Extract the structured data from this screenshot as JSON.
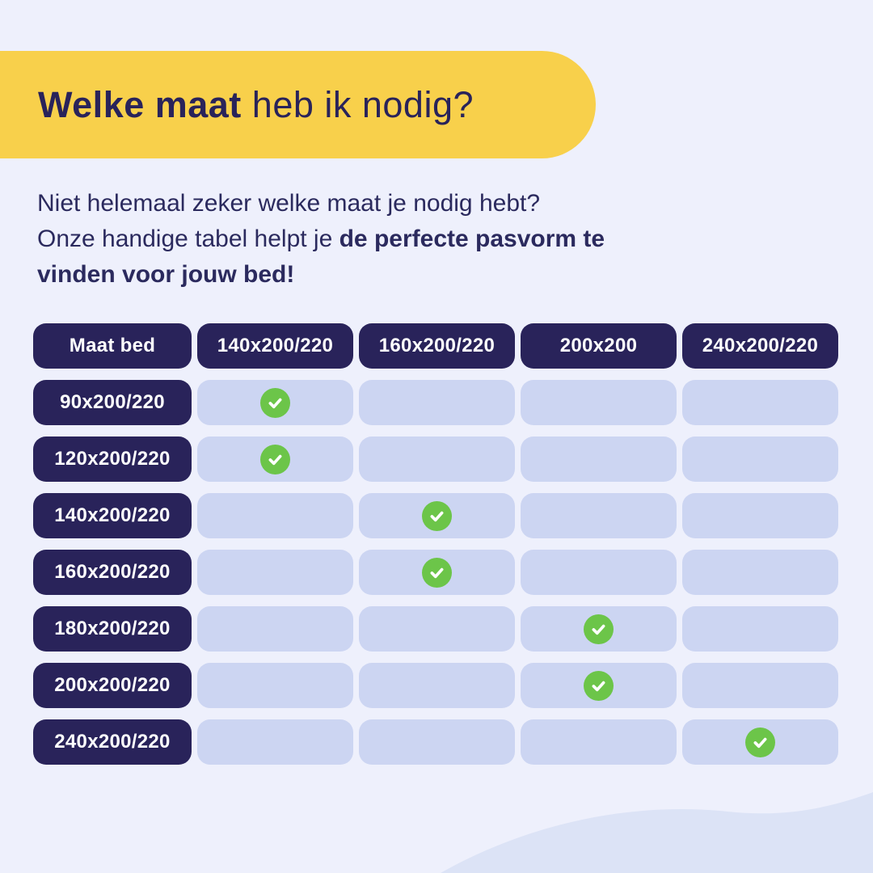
{
  "header": {
    "title_bold": "Welke maat",
    "title_regular": " heb ik nodig?"
  },
  "intro": {
    "line1": "Niet helemaal zeker welke maat je nodig hebt?",
    "line2_regular": "Onze handige tabel helpt je ",
    "line2_bold": "de perfecte pasvorm te",
    "line3_bold": "vinden voor jouw bed!"
  },
  "chart_data": {
    "type": "table",
    "title": "Welke maat heb ik nodig?",
    "columns": [
      "Maat bed",
      "140x200/220",
      "160x200/220",
      "200x200",
      "240x200/220"
    ],
    "rows": [
      {
        "label": "90x200/220",
        "checks": [
          true,
          false,
          false,
          false
        ]
      },
      {
        "label": "120x200/220",
        "checks": [
          true,
          false,
          false,
          false
        ]
      },
      {
        "label": "140x200/220",
        "checks": [
          false,
          true,
          false,
          false
        ]
      },
      {
        "label": "160x200/220",
        "checks": [
          false,
          true,
          false,
          false
        ]
      },
      {
        "label": "180x200/220",
        "checks": [
          false,
          false,
          true,
          false
        ]
      },
      {
        "label": "200x200/220",
        "checks": [
          false,
          false,
          true,
          false
        ]
      },
      {
        "label": "240x200/220",
        "checks": [
          false,
          false,
          false,
          true
        ]
      }
    ],
    "check_symbol": "checkmark"
  },
  "colors": {
    "background": "#eef0fc",
    "banner_yellow": "#f8d04b",
    "navy": "#29235a",
    "text_navy": "#2b2a5e",
    "cell_lavender": "#ccd5f2",
    "wave_lavender": "#dce3f6",
    "check_green": "#6cc549",
    "pill_text": "#ffffff"
  }
}
